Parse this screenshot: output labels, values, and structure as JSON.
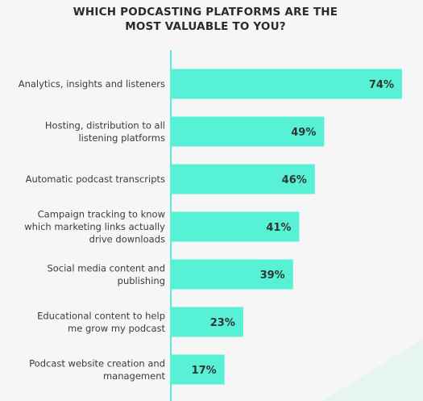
{
  "colors": {
    "bar": "#57f2d6",
    "axis": "#57f2d6",
    "label": "#3b3b3b",
    "value": "#333333",
    "title": "#2b2b2b",
    "background": "#f6f6f6",
    "decor": "#e6f6ef"
  },
  "title_lines": [
    "WHICH PODCASTING PLATFORMS ARE THE",
    "MOST VALUABLE TO YOU?"
  ],
  "chart_data": {
    "type": "bar",
    "orientation": "horizontal",
    "title": "WHICH PODCASTING PLATFORMS ARE THE MOST VALUABLE TO YOU?",
    "categories": [
      [
        "Analytics, insights and listeners"
      ],
      [
        "Hosting, distribution to all",
        "listening platforms"
      ],
      [
        "Automatic podcast transcripts"
      ],
      [
        "Campaign tracking to know",
        "which marketing links actually",
        "drive downloads"
      ],
      [
        "Social media content and",
        "publishing"
      ],
      [
        "Educational content to help",
        "me grow my podcast"
      ],
      [
        "Podcast website creation and",
        "management"
      ]
    ],
    "values": [
      74,
      49,
      46,
      41,
      39,
      23,
      17
    ],
    "value_labels": [
      "74%",
      "49%",
      "46%",
      "41%",
      "39%",
      "23%",
      "17%"
    ],
    "unit": "%",
    "xlim": [
      0,
      100
    ],
    "grid": false,
    "legend": "none"
  }
}
